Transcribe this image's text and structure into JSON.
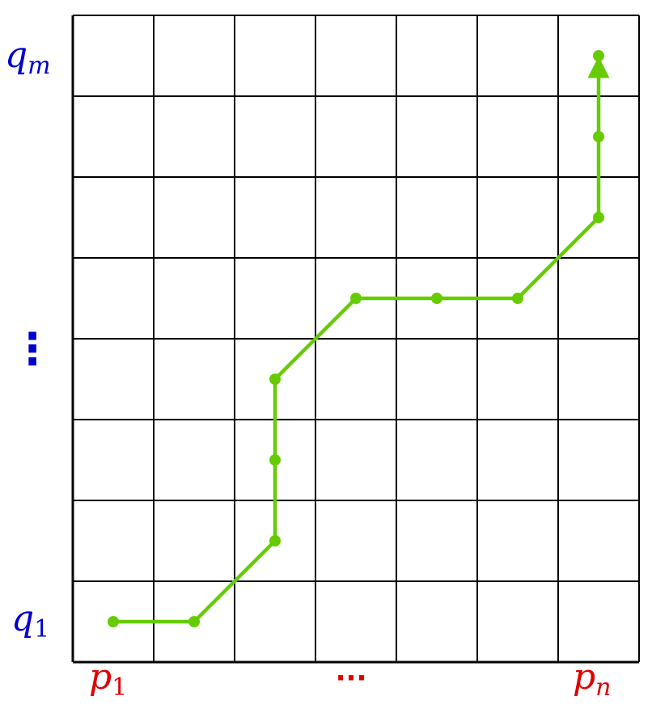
{
  "diagram": {
    "grid": {
      "columns": 7,
      "rows": 8,
      "line_color": "#000000"
    },
    "path": {
      "color": "#66cc00",
      "cells": [
        [
          0,
          0
        ],
        [
          1,
          0
        ],
        [
          2,
          1
        ],
        [
          2,
          2
        ],
        [
          2,
          3
        ],
        [
          3,
          4
        ],
        [
          4,
          4
        ],
        [
          5,
          4
        ],
        [
          6,
          5
        ],
        [
          6,
          6
        ],
        [
          6,
          7
        ]
      ],
      "end_arrow": true
    },
    "x_labels": {
      "color": "#e00000",
      "first": {
        "base": "p",
        "sub": "1"
      },
      "middle": "···",
      "last": {
        "base": "p",
        "sub": "n"
      }
    },
    "y_labels": {
      "color": "#0000cc",
      "top": {
        "base": "q",
        "sub": "m"
      },
      "middle": "⋮",
      "bottom": {
        "base": "q",
        "sub": "1"
      }
    }
  }
}
